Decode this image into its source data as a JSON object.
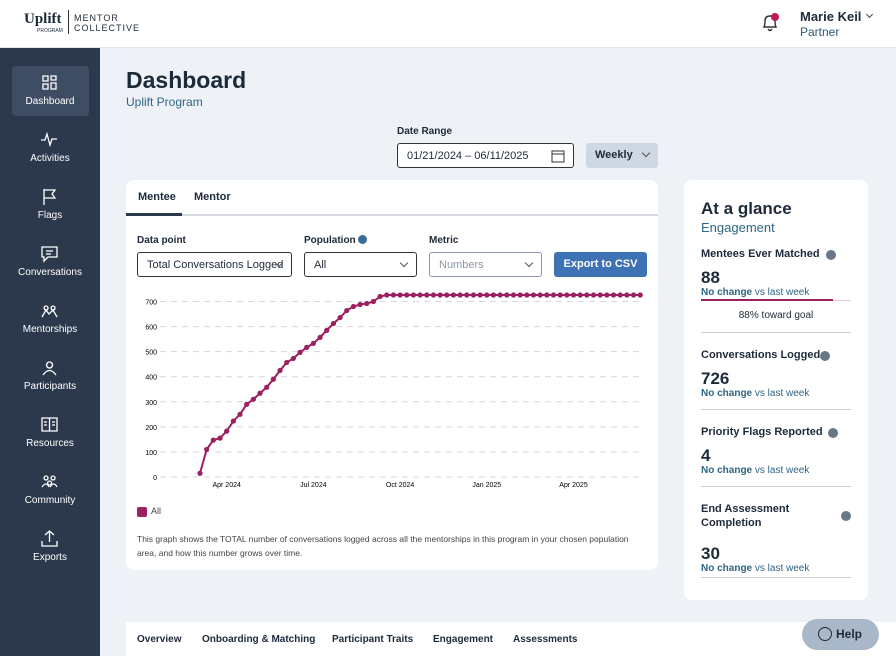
{
  "header": {
    "logo_main": "Uplift",
    "logo_sub": "PROGRAM",
    "brand_line1": "MENTOR",
    "brand_line2": "COLLECTIVE",
    "user_name": "Marie Keil",
    "user_role": "Partner"
  },
  "nav": [
    "Dashboard",
    "Activities",
    "Flags",
    "Conversations",
    "Mentorships",
    "Participants",
    "Resources",
    "Community",
    "Exports"
  ],
  "page": {
    "title": "Dashboard",
    "subtitle": "Uplift Program"
  },
  "date_range": {
    "label": "Date Range",
    "value": "01/21/2024 – 06/11/2025",
    "period": "Weekly"
  },
  "tabs": [
    "Mentee",
    "Mentor"
  ],
  "controls": {
    "data_point_label": "Data point",
    "data_point_value": "Total Conversations Logged",
    "population_label": "Population",
    "population_value": "All",
    "metric_label": "Metric",
    "metric_value": "Numbers",
    "export": "Export to CSV"
  },
  "chart_data": {
    "type": "line",
    "categories": [
      null,
      null,
      null,
      null,
      "Apr 2024",
      null,
      null,
      null,
      null,
      null,
      null,
      null,
      null,
      null,
      null,
      null,
      null,
      "Jul 2024",
      null,
      null,
      null,
      null,
      null,
      null,
      null,
      null,
      null,
      null,
      null,
      null,
      "Oct 2024",
      null,
      null,
      null,
      null,
      null,
      null,
      null,
      null,
      null,
      null,
      null,
      null,
      "Jan 2025",
      null,
      null,
      null,
      null,
      null,
      null,
      null,
      null,
      null,
      null,
      null,
      null,
      "Apr 2025",
      null,
      null,
      null,
      null,
      null,
      null,
      null,
      null,
      null,
      null
    ],
    "series": [
      {
        "name": "All",
        "color": "#9c1f5e",
        "values": [
          15,
          110,
          147,
          155,
          183,
          223,
          250,
          290,
          310,
          334,
          358,
          390,
          425,
          457,
          473,
          497,
          517,
          533,
          557,
          585,
          612,
          636,
          664,
          680,
          688,
          692,
          700,
          720,
          726,
          726,
          726,
          726,
          726,
          726,
          726,
          726,
          726,
          726,
          726,
          726,
          726,
          726,
          726,
          726,
          726,
          726,
          726,
          726,
          726,
          726,
          726,
          726,
          726,
          726,
          726,
          726,
          726,
          726,
          726,
          726,
          726,
          726,
          726,
          726,
          726,
          726,
          726
        ]
      }
    ],
    "ylim": [
      0,
      730
    ],
    "yticks": [
      0,
      100,
      200,
      300,
      400,
      500,
      600,
      700
    ],
    "grid": true
  },
  "chart_note": "This graph shows the TOTAL number of conversations logged across all the mentorships in this program in your chosen population area, and how this number grows over time.",
  "glance": {
    "title": "At a glance",
    "subtitle": "Engagement",
    "items": [
      {
        "label": "Mentees Ever Matched",
        "value": "88",
        "change": "No change",
        "change_rest": "vs last week"
      },
      {
        "label": "Conversations Logged",
        "value": "726",
        "change": "No change",
        "change_rest": "vs last week"
      },
      {
        "label": "Priority Flags Reported",
        "value": "4",
        "change": "No change",
        "change_rest": "vs last week"
      },
      {
        "label": "End Assessment Completion",
        "value": "30",
        "change": "No change",
        "change_rest": "vs last week"
      }
    ],
    "goal": {
      "value": 88,
      "label": "88% toward goal"
    }
  },
  "bottom_tabs": [
    "Overview",
    "Onboarding & Matching",
    "Participant Traits",
    "Engagement",
    "Assessments"
  ],
  "help": "Help"
}
